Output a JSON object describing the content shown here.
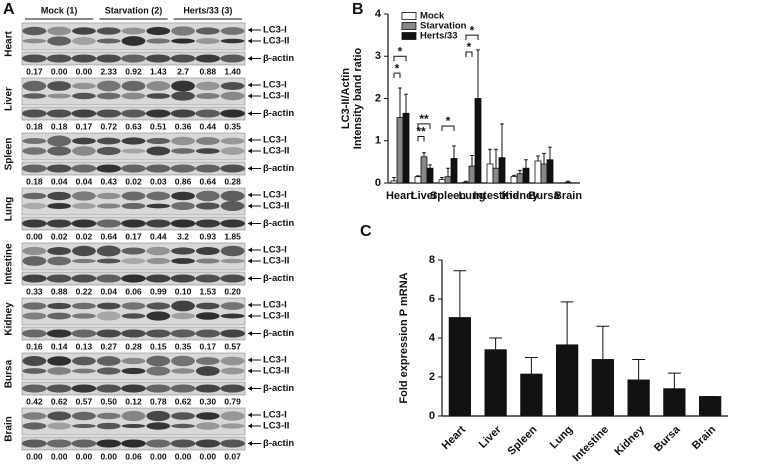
{
  "panel_a": {
    "label": "A",
    "groups": [
      "Mock (1)",
      "Starvation (2)",
      "Herts/33 (3)"
    ],
    "bands": [
      "LC3-I",
      "LC3-II",
      "β-actin"
    ],
    "tissues": [
      {
        "name": "Heart",
        "ratios": [
          "0.17",
          "0.00",
          "0.00",
          "2.33",
          "0.92",
          "1.43",
          "2.7",
          "0.88",
          "1.40"
        ]
      },
      {
        "name": "Liver",
        "ratios": [
          "0.18",
          "0.18",
          "0.17",
          "0.72",
          "0.63",
          "0.51",
          "0.36",
          "0.44",
          "0.35"
        ]
      },
      {
        "name": "Spleen",
        "ratios": [
          "0.18",
          "0.04",
          "0.04",
          "0.43",
          "0.02",
          "0.03",
          "0.86",
          "0.64",
          "0.28"
        ]
      },
      {
        "name": "Lung",
        "ratios": [
          "0.00",
          "0.02",
          "0.02",
          "0.64",
          "0.17",
          "0.44",
          "3.2",
          "0.93",
          "1.85"
        ]
      },
      {
        "name": "Intestine",
        "ratios": [
          "0.33",
          "0.88",
          "0.22",
          "0.04",
          "0.06",
          "0.99",
          "0.10",
          "1.53",
          "0.20"
        ]
      },
      {
        "name": "Kidney",
        "ratios": [
          "0.16",
          "0.14",
          "0.13",
          "0.27",
          "0.28",
          "0.15",
          "0.35",
          "0.17",
          "0.57"
        ]
      },
      {
        "name": "Bursa",
        "ratios": [
          "0.42",
          "0.62",
          "0.57",
          "0.50",
          "0.12",
          "0.78",
          "0.62",
          "0.30",
          "0.79"
        ]
      },
      {
        "name": "Brain",
        "ratios": [
          "0.00",
          "0.00",
          "0.00",
          "0.00",
          "0.06",
          "0.00",
          "0.00",
          "0.00",
          "0.07"
        ]
      }
    ]
  },
  "chart_data": [
    {
      "type": "bar",
      "label": "B",
      "ylabel": [
        "LC3-II/Actin",
        "Intensity band ratio"
      ],
      "categories": [
        "Heart",
        "Liver",
        "Spleen",
        "Lung",
        "Intestine",
        "Kidney",
        "Bursa",
        "Brain"
      ],
      "series": [
        {
          "name": "Mock",
          "color": "#ffffff",
          "values": [
            0.05,
            0.15,
            0.08,
            0.02,
            0.45,
            0.15,
            0.52,
            0
          ],
          "errors": [
            0.08,
            0.02,
            0.05,
            0.02,
            0.35,
            0.03,
            0.12,
            0
          ]
        },
        {
          "name": "Starvation",
          "color": "#888888",
          "values": [
            1.55,
            0.62,
            0.15,
            0.4,
            0.35,
            0.22,
            0.45,
            0.02
          ],
          "errors": [
            0.7,
            0.1,
            0.2,
            0.25,
            0.45,
            0.08,
            0.25,
            0.02
          ]
        },
        {
          "name": "Herts/33",
          "color": "#111111",
          "values": [
            1.65,
            0.35,
            0.58,
            2.0,
            0.6,
            0.35,
            0.55,
            0
          ],
          "errors": [
            0.45,
            0.08,
            0.3,
            1.15,
            0.8,
            0.2,
            0.3,
            0
          ]
        }
      ],
      "annotations": [
        "*",
        "*",
        "**",
        "**",
        "*",
        "*",
        "*"
      ],
      "ylim": [
        0,
        4
      ],
      "yticks": [
        0,
        1,
        2,
        3,
        4
      ],
      "legend": "top-left"
    },
    {
      "type": "bar",
      "label": "C",
      "ylabel": "Fold expression P mRNA",
      "categories": [
        "Heart",
        "Liver",
        "Spleen",
        "Lung",
        "Intestine",
        "Kidney",
        "Bursa",
        "Brain"
      ],
      "color": "#111111",
      "values": [
        5.05,
        3.4,
        2.15,
        3.65,
        2.9,
        1.85,
        1.4,
        1.0
      ],
      "errors": [
        2.4,
        0.6,
        0.85,
        2.2,
        1.7,
        1.05,
        0.8,
        0
      ],
      "ylim": [
        0,
        8
      ],
      "yticks": [
        0,
        2,
        4,
        6,
        8
      ]
    }
  ]
}
